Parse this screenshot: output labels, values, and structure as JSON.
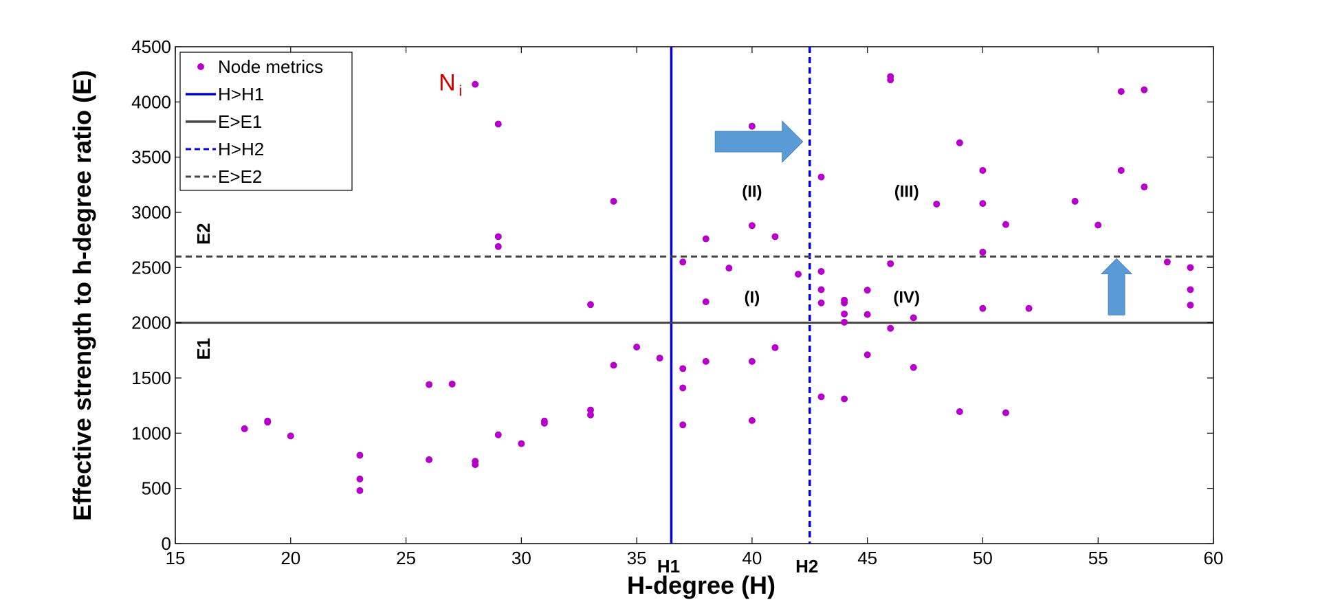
{
  "chart_data": {
    "type": "scatter",
    "title": "",
    "xlabel": "H-degree (H)",
    "ylabel": "Effective strength to h-degree ratio (E)",
    "xlim": [
      15,
      60
    ],
    "ylim": [
      0,
      4500
    ],
    "xticks": [
      "15",
      "20",
      "25",
      "30",
      "35",
      "40",
      "45",
      "50",
      "55",
      "60"
    ],
    "yticks": [
      "0",
      "500",
      "1000",
      "1500",
      "2000",
      "2500",
      "3000",
      "3500",
      "4000",
      "4500"
    ],
    "grid": false,
    "legend_position": "top-left",
    "series": [
      {
        "name": "Node metrics",
        "color": "#b400c8",
        "marker": "dot",
        "x": [
          18,
          19,
          19,
          20,
          23,
          23,
          23,
          26,
          26,
          27,
          28,
          28,
          28,
          29,
          29,
          29,
          29,
          30,
          31,
          31,
          33,
          33,
          33,
          34,
          34,
          35,
          36,
          37,
          37,
          37,
          37,
          38,
          38,
          38,
          39,
          40,
          40,
          40,
          40,
          41,
          41,
          42,
          43,
          43,
          43,
          43,
          43,
          44,
          44,
          44,
          44,
          44,
          45,
          45,
          45,
          46,
          46,
          46,
          46,
          47,
          47,
          48,
          49,
          49,
          50,
          50,
          50,
          50,
          51,
          51,
          52,
          54,
          55,
          56,
          56,
          57,
          57,
          58,
          59,
          59,
          59
        ],
        "y": [
          1040,
          1110,
          1100,
          975,
          800,
          585,
          480,
          760,
          1440,
          1445,
          4160,
          745,
          715,
          3800,
          2780,
          2690,
          985,
          905,
          1110,
          1090,
          2165,
          1210,
          1165,
          3100,
          1615,
          1780,
          1680,
          2550,
          1585,
          1410,
          1075,
          2760,
          2190,
          1650,
          2495,
          3780,
          2880,
          1650,
          1115,
          2780,
          1775,
          2440,
          3320,
          2465,
          2300,
          2180,
          1330,
          2205,
          2180,
          2080,
          2005,
          1310,
          2295,
          2075,
          1710,
          4230,
          4200,
          2535,
          1950,
          2045,
          1595,
          3075,
          3630,
          1195,
          3380,
          3080,
          2640,
          2130,
          2890,
          1185,
          2130,
          3100,
          2885,
          4095,
          3380,
          4110,
          3230,
          2550,
          2500,
          2300,
          2160
        ]
      }
    ],
    "reference_lines": [
      {
        "name": "H>H1",
        "orientation": "vertical",
        "value": 36.5,
        "color": "#0000e0",
        "style": "solid",
        "label": "H1"
      },
      {
        "name": "E>E1",
        "orientation": "horizontal",
        "value": 2000,
        "color": "#444444",
        "style": "solid",
        "label": "E1"
      },
      {
        "name": "H>H2",
        "orientation": "vertical",
        "value": 42.5,
        "color": "#0000e0",
        "style": "dashed",
        "label": "H2"
      },
      {
        "name": "E>E2",
        "orientation": "horizontal",
        "value": 2600,
        "color": "#444444",
        "style": "dashed",
        "label": "E2"
      }
    ],
    "regions": [
      {
        "label": "(I)",
        "x": 40,
        "y": 2230
      },
      {
        "label": "(II)",
        "x": 40,
        "y": 3190
      },
      {
        "label": "(III)",
        "x": 46.7,
        "y": 3190
      },
      {
        "label": "(IV)",
        "x": 46.7,
        "y": 2230
      }
    ],
    "annotations": [
      {
        "text": "N",
        "subscript": "i",
        "x": 27.2,
        "y": 4180
      }
    ],
    "arrows": [
      {
        "direction": "right",
        "color": "#5b9bd5",
        "from": [
          38.4,
          3640
        ],
        "to": [
          42.2,
          3640
        ]
      },
      {
        "direction": "up",
        "color": "#5b9bd5",
        "from": [
          55.8,
          2070
        ],
        "to": [
          55.8,
          2580
        ]
      }
    ]
  }
}
